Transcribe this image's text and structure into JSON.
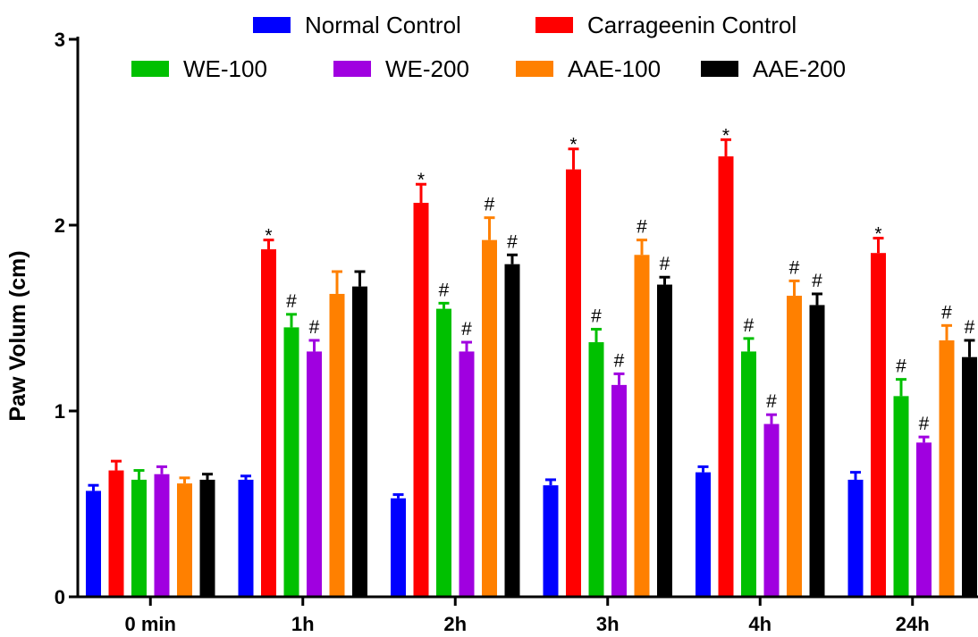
{
  "chart_data": {
    "type": "bar",
    "title": "",
    "xlabel": "",
    "ylabel": "Paw Volum (cm)",
    "ylim": [
      0,
      3
    ],
    "yticks": [
      "0",
      "1",
      "2",
      "3"
    ],
    "categories": [
      "0 min",
      "1h",
      "2h",
      "3h",
      "4h",
      "24h"
    ],
    "legend_position": "top",
    "series": [
      {
        "name": "Normal Control",
        "color": "#0000ff",
        "values": [
          0.57,
          0.63,
          0.53,
          0.6,
          0.67,
          0.63
        ],
        "errors": [
          0.03,
          0.02,
          0.02,
          0.03,
          0.03,
          0.04
        ],
        "labels": [
          "",
          "",
          "",
          "",
          "",
          ""
        ]
      },
      {
        "name": "Carrageenin Control",
        "color": "#ff0000",
        "values": [
          0.68,
          1.87,
          2.12,
          2.3,
          2.37,
          1.85
        ],
        "errors": [
          0.05,
          0.05,
          0.1,
          0.11,
          0.09,
          0.08
        ],
        "labels": [
          "",
          "*",
          "*",
          "*",
          "*",
          "*"
        ]
      },
      {
        "name": "WE-100",
        "color": "#00c000",
        "values": [
          0.63,
          1.45,
          1.55,
          1.37,
          1.32,
          1.08
        ],
        "errors": [
          0.05,
          0.07,
          0.03,
          0.07,
          0.07,
          0.09
        ],
        "labels": [
          "",
          "#",
          "#",
          "#",
          "#",
          "#"
        ]
      },
      {
        "name": "WE-200",
        "color": "#a000e0",
        "values": [
          0.66,
          1.32,
          1.32,
          1.14,
          0.93,
          0.83
        ],
        "errors": [
          0.04,
          0.06,
          0.05,
          0.06,
          0.05,
          0.03
        ],
        "labels": [
          "",
          "#",
          "#",
          "#",
          "#",
          "#"
        ]
      },
      {
        "name": "AAE-100",
        "color": "#ff8000",
        "values": [
          0.61,
          1.63,
          1.92,
          1.84,
          1.62,
          1.38
        ],
        "errors": [
          0.03,
          0.12,
          0.12,
          0.08,
          0.08,
          0.08
        ],
        "labels": [
          "",
          "",
          "#",
          "#",
          "#",
          "#"
        ]
      },
      {
        "name": "AAE-200",
        "color": "#000000",
        "values": [
          0.63,
          1.67,
          1.79,
          1.68,
          1.57,
          1.29
        ],
        "errors": [
          0.03,
          0.08,
          0.05,
          0.04,
          0.06,
          0.09
        ],
        "labels": [
          "",
          "",
          "#",
          "#",
          "#",
          "#"
        ]
      }
    ]
  }
}
